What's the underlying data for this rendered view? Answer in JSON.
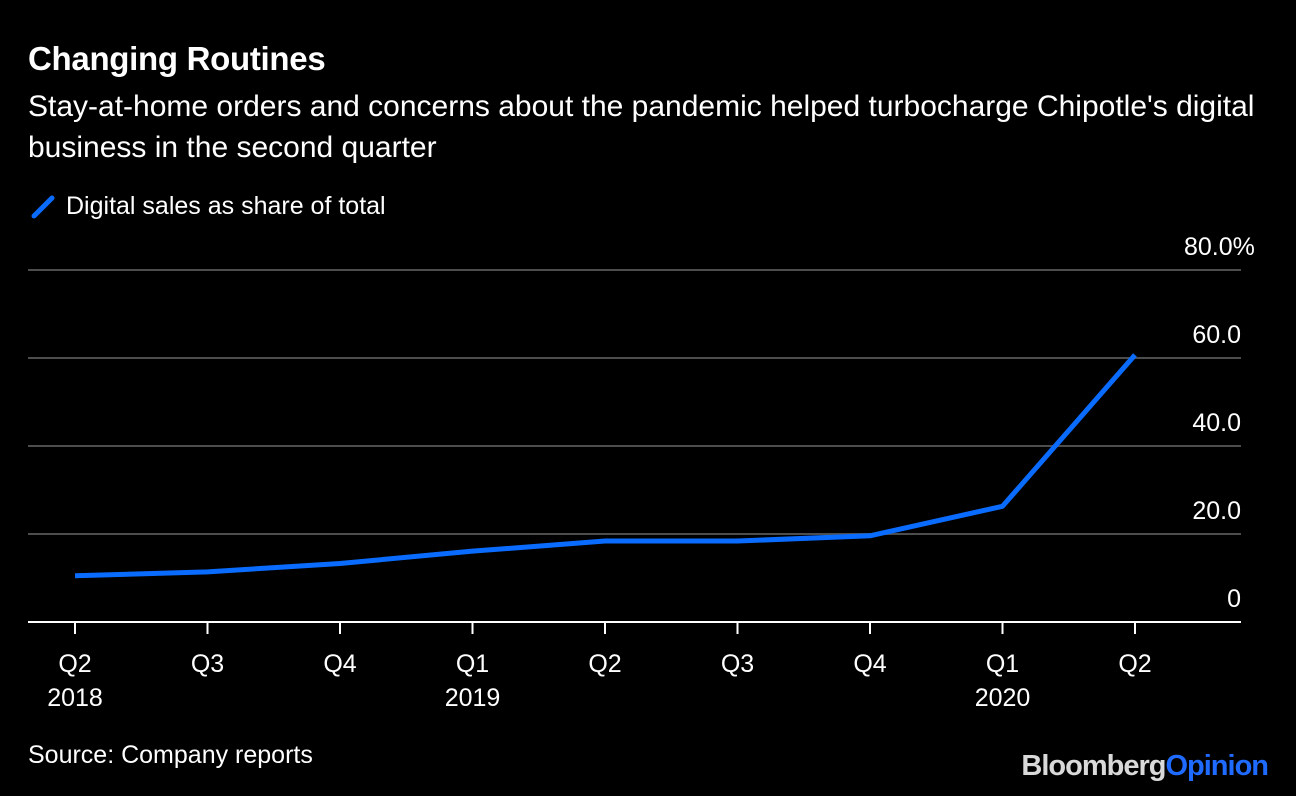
{
  "title": "Changing Routines",
  "subtitle": "Stay-at-home orders and concerns about the pandemic helped turbocharge Chipotle's digital business in the second quarter",
  "source": "Source: Company reports",
  "brand": {
    "part1": "Bloomberg",
    "part2": "Opinion"
  },
  "colors": {
    "background": "#000000",
    "series": "#0a6cff",
    "grid": "#4d4d4d",
    "axis": "#ffffff",
    "text": "#ffffff"
  },
  "chart_data": {
    "type": "line",
    "title": "Changing Routines",
    "subtitle": "Stay-at-home orders and concerns about the pandemic helped turbocharge Chipotle's digital business in the second quarter",
    "xlabel": "",
    "ylabel": "",
    "categories": [
      "Q2",
      "Q3",
      "Q4",
      "Q1",
      "Q2",
      "Q3",
      "Q4",
      "Q1",
      "Q2"
    ],
    "year_labels": [
      "2018",
      "",
      "",
      "2019",
      "",
      "",
      "",
      "2020",
      ""
    ],
    "series": [
      {
        "name": "Digital sales as share of total",
        "color": "#0a6cff",
        "values": [
          10.5,
          11.4,
          13.3,
          16.1,
          18.4,
          18.4,
          19.6,
          26.3,
          60.7
        ]
      }
    ],
    "ylim": [
      0,
      80
    ],
    "yticks": [
      0,
      20,
      40,
      60,
      80
    ],
    "ytick_labels": [
      "0",
      "20.0",
      "40.0",
      "60.0",
      "80.0%"
    ],
    "grid": true,
    "legend_position": "top-left",
    "y_axis_side": "right"
  }
}
